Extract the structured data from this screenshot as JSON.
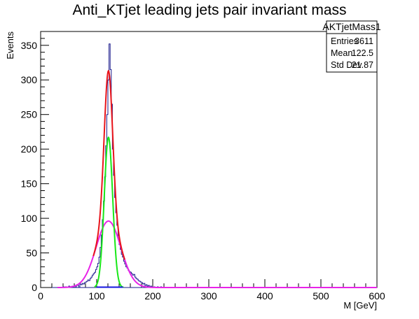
{
  "chart_data": {
    "type": "histogram",
    "title": "Anti_KTjet leading jets pair invariant mass",
    "xlabel": "M [GeV]",
    "ylabel": "Events",
    "xlim": [
      0,
      600
    ],
    "ylim": [
      0,
      370
    ],
    "x_ticks": [
      0,
      100,
      200,
      300,
      400,
      500,
      600
    ],
    "y_ticks": [
      0,
      50,
      100,
      150,
      200,
      250,
      300,
      350
    ],
    "grid": false,
    "colors": {
      "histogram": "#1a1a8c",
      "total_fit": "#e8141b",
      "signal_fit": "#18e818",
      "background_fit": "#e823e8",
      "flat_fit": "#1414e0"
    },
    "stats_box": {
      "title": "AKTjetMass1",
      "rows": [
        {
          "label": "Entries",
          "value": "3611"
        },
        {
          "label": "Mean",
          "value": "122.5"
        },
        {
          "label": "Std Dev",
          "value": "21.87"
        }
      ]
    },
    "histogram": {
      "bin_width": 2,
      "bins": [
        [
          40,
          1
        ],
        [
          44,
          1
        ],
        [
          50,
          2
        ],
        [
          56,
          2
        ],
        [
          60,
          3
        ],
        [
          64,
          4
        ],
        [
          66,
          3
        ],
        [
          70,
          5
        ],
        [
          72,
          4
        ],
        [
          74,
          6
        ],
        [
          76,
          5
        ],
        [
          78,
          7
        ],
        [
          80,
          8
        ],
        [
          82,
          9
        ],
        [
          84,
          11
        ],
        [
          86,
          10
        ],
        [
          88,
          13
        ],
        [
          90,
          15
        ],
        [
          92,
          18
        ],
        [
          94,
          20
        ],
        [
          96,
          22
        ],
        [
          98,
          26
        ],
        [
          100,
          30
        ],
        [
          102,
          35
        ],
        [
          104,
          44
        ],
        [
          106,
          58
        ],
        [
          108,
          76
        ],
        [
          110,
          98
        ],
        [
          112,
          125
        ],
        [
          114,
          160
        ],
        [
          116,
          205
        ],
        [
          118,
          250
        ],
        [
          120,
          300
        ],
        [
          122,
          352
        ],
        [
          124,
          315
        ],
        [
          126,
          265
        ],
        [
          128,
          200
        ],
        [
          130,
          162
        ],
        [
          132,
          130
        ],
        [
          134,
          108
        ],
        [
          136,
          90
        ],
        [
          138,
          72
        ],
        [
          140,
          62
        ],
        [
          142,
          55
        ],
        [
          144,
          48
        ],
        [
          146,
          44
        ],
        [
          148,
          38
        ],
        [
          150,
          34
        ],
        [
          152,
          30
        ],
        [
          154,
          28
        ],
        [
          156,
          25
        ],
        [
          158,
          23
        ],
        [
          160,
          22
        ],
        [
          162,
          20
        ],
        [
          164,
          18
        ],
        [
          166,
          19
        ],
        [
          168,
          15
        ],
        [
          170,
          13
        ],
        [
          172,
          12
        ],
        [
          174,
          10
        ],
        [
          176,
          9
        ],
        [
          178,
          8
        ],
        [
          180,
          7
        ],
        [
          182,
          5
        ],
        [
          184,
          6
        ],
        [
          186,
          3
        ],
        [
          188,
          4
        ],
        [
          190,
          2
        ],
        [
          192,
          3
        ],
        [
          194,
          1
        ],
        [
          196,
          2
        ],
        [
          198,
          1
        ],
        [
          202,
          1
        ],
        [
          208,
          1
        ],
        [
          214,
          1
        ]
      ]
    },
    "fits": [
      {
        "name": "total",
        "model": "gaussian+gaussian",
        "components": [
          {
            "amplitude": 217,
            "mean": 121,
            "sigma": 7.5
          },
          {
            "amplitude": 96,
            "mean": 121,
            "sigma": 22
          }
        ],
        "x_range": [
          94,
          150
        ]
      },
      {
        "name": "signal",
        "model": "gaussian",
        "amplitude": 217,
        "mean": 121,
        "sigma": 7.5,
        "x_range": [
          96,
          148
        ]
      },
      {
        "name": "background",
        "model": "gaussian",
        "amplitude": 96,
        "mean": 121,
        "sigma": 22,
        "x_range": [
          30,
          600
        ]
      },
      {
        "name": "flat",
        "model": "constant",
        "value": 0.5,
        "x_range": [
          100,
          147
        ]
      }
    ]
  }
}
